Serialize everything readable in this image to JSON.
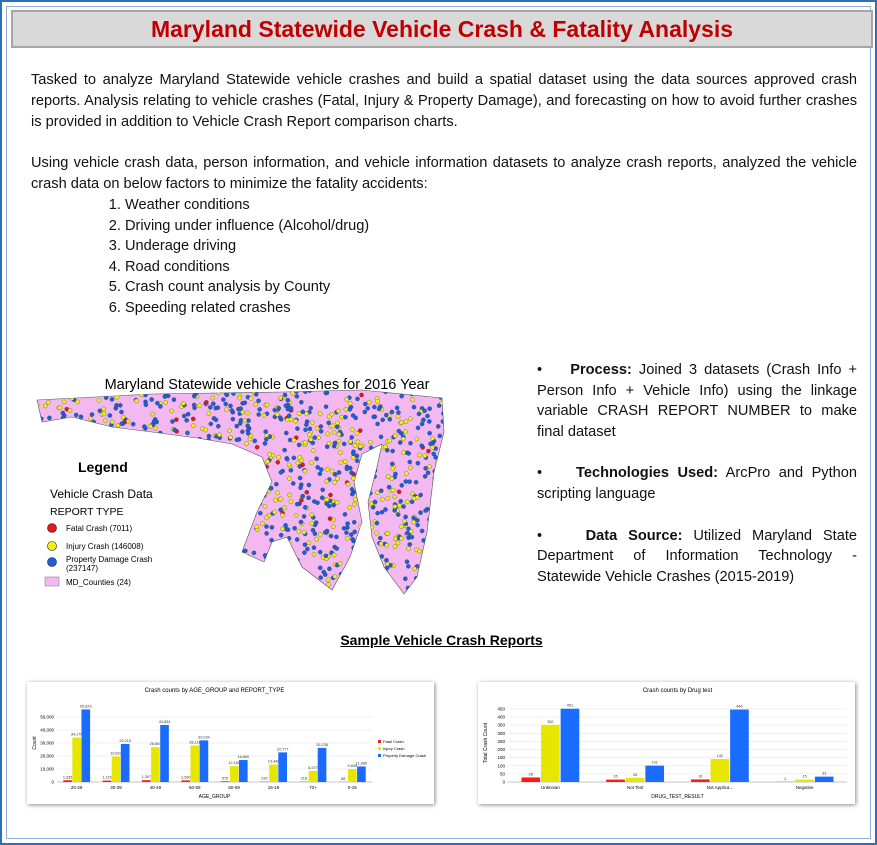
{
  "header": {
    "title": "Maryland Statewide Vehicle Crash & Fatality Analysis"
  },
  "intro": {
    "paragraphs": [
      "Tasked to analyze Maryland Statewide vehicle crashes and build a spatial dataset using the data sources approved crash reports. Analysis relating to vehicle crashes (Fatal, Injury & Property Damage), and forecasting on how to avoid further crashes is provided in addition to Vehicle Crash Report comparison charts.",
      "Using vehicle crash data, person information, and vehicle information datasets to analyze crash reports, analyzed the vehicle crash data on below factors to minimize the fatality accidents:"
    ],
    "factors": [
      "Weather conditions",
      "Driving under influence (Alcohol/drug)",
      "Underage driving",
      "Road conditions",
      "Crash count analysis by County",
      "Speeding related crashes"
    ]
  },
  "map": {
    "title": "Maryland Statewide vehicle Crashes for 2016 Year",
    "legend": {
      "title": "Legend",
      "layer": "Vehicle Crash Data",
      "field": "REPORT TYPE",
      "items": [
        {
          "label": "Fatal Crash (7011)",
          "color": "#e8141c"
        },
        {
          "label": "Injury Crash (146008)",
          "color": "#f2ee1a"
        },
        {
          "label": "Property Damage Crash (237147)",
          "color": "#1f5fd6"
        },
        {
          "label": "MD_Counties (24)",
          "color": "#f4b8f0"
        }
      ]
    }
  },
  "notes": [
    {
      "label": "Process:",
      "text": "Joined 3 datasets (Crash Info + Person Info + Vehicle Info) using the linkage variable CRASH REPORT NUMBER to make final dataset"
    },
    {
      "label": "Technologies Used:",
      "text": "ArcPro and Python scripting language"
    },
    {
      "label": "Data Source:",
      "text": "Utilized Maryland State Department of Information Technology - Statewide Vehicle Crashes (2015-2019)"
    }
  ],
  "charts_heading": "Sample Vehicle Crash Reports",
  "charts": [
    {
      "type": "bar",
      "title": "Crash counts by AGE_GROUP and REPORT_TYPE",
      "x_label": "AGE_GROUP",
      "y_label": "Count",
      "categories": [
        "20-29",
        "30-39",
        "40-49",
        "50-59",
        "60-69",
        "16-19",
        "70+",
        "0-15"
      ],
      "series": [
        {
          "name": "Fatal Crash",
          "color": "#ff1a1a",
          "values": [
            1335,
            1115,
            1397,
            1260,
            576,
            232,
            218,
            88
          ],
          "value_labels": [
            "1,335",
            "1,115",
            "1,397",
            "1,260",
            "576",
            "232",
            "218",
            "88"
          ]
        },
        {
          "name": "Injury Crash",
          "color": "#e6e600",
          "values": [
            34170,
            19623,
            26804,
            28111,
            12180,
            13448,
            8577,
            9838
          ],
          "value_labels": [
            "34,170",
            "19,623",
            "26,804",
            "28,111",
            "12,180",
            "13,448",
            "8,577",
            "9,838"
          ]
        },
        {
          "name": "Property Damage Crash",
          "color": "#1a6cff",
          "values": [
            55823,
            29215,
            43834,
            32034,
            16890,
            22777,
            26238,
            11966
          ],
          "value_labels": [
            "55,823",
            "29,215",
            "43,834",
            "32,034",
            "16,890",
            "22,777",
            "26,238",
            "11,966"
          ]
        }
      ],
      "ylim": [
        0,
        60000
      ],
      "yticks": [
        0,
        {
          "value": 10000,
          "label": "10,000"
        },
        {
          "value": 20000,
          "label": "20,000"
        },
        {
          "value": 30000,
          "label": "30,000"
        },
        {
          "value": 40000,
          "label": "40,000"
        },
        {
          "value": 50000,
          "label": "50,000"
        }
      ],
      "legend": "right"
    },
    {
      "type": "bar",
      "title": "Crash counts by Drug test",
      "x_label": "DRUG_TEST_RESULT",
      "y_label": "Total Crash Count",
      "categories": [
        "Unknown",
        "Not Test",
        "Not Applica...",
        "Negative"
      ],
      "series": [
        {
          "name": "Fatal Crash",
          "color": "#ff1a1a",
          "values": [
            28,
            15,
            16,
            1
          ]
        },
        {
          "name": "Injury Crash",
          "color": "#e6e600",
          "values": [
            352,
            26,
            142,
            15
          ]
        },
        {
          "name": "Property Damage Crash",
          "color": "#1a6cff",
          "values": [
            451,
            101,
            446,
            33
          ]
        }
      ],
      "ylim": [
        0,
        480
      ],
      "yticks": [
        0,
        50,
        100,
        150,
        200,
        250,
        300,
        350,
        400,
        450
      ]
    }
  ]
}
